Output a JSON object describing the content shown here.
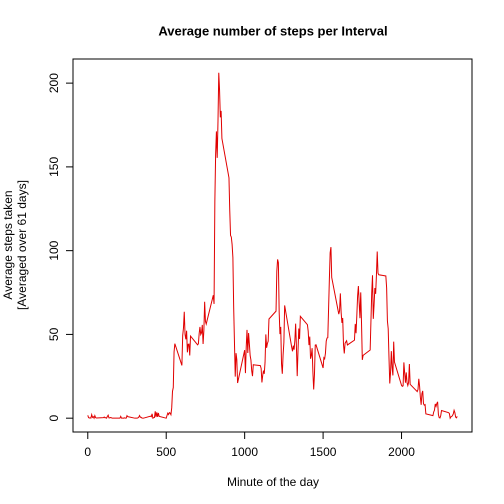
{
  "chart_data": {
    "type": "line",
    "title": "Average number of steps per Interval",
    "xlabel": "Minute of the day",
    "ylabel": [
      "Average steps taken",
      "[Averaged over 61 days]"
    ],
    "xlim": [
      -94.2,
      2449.2
    ],
    "ylim": [
      -8.25,
      214.4
    ],
    "xticks": [
      0,
      500,
      1000,
      1500,
      2000
    ],
    "yticks": [
      0,
      50,
      100,
      150,
      200
    ],
    "x": [
      0,
      5,
      10,
      15,
      20,
      25,
      30,
      35,
      40,
      45,
      50,
      55,
      100,
      105,
      110,
      115,
      120,
      125,
      130,
      135,
      140,
      145,
      150,
      155,
      200,
      205,
      210,
      215,
      220,
      225,
      230,
      235,
      240,
      245,
      250,
      255,
      300,
      305,
      310,
      315,
      320,
      325,
      330,
      335,
      340,
      345,
      350,
      355,
      400,
      405,
      410,
      415,
      420,
      425,
      430,
      435,
      440,
      445,
      450,
      455,
      500,
      505,
      510,
      515,
      520,
      525,
      530,
      535,
      540,
      545,
      550,
      555,
      600,
      605,
      610,
      615,
      620,
      625,
      630,
      635,
      640,
      645,
      650,
      655,
      700,
      705,
      710,
      715,
      720,
      725,
      730,
      735,
      740,
      745,
      750,
      755,
      800,
      805,
      810,
      815,
      820,
      825,
      830,
      835,
      840,
      845,
      850,
      855,
      900,
      905,
      910,
      915,
      920,
      925,
      930,
      935,
      940,
      945,
      950,
      955,
      1000,
      1005,
      1010,
      1015,
      1020,
      1025,
      1030,
      1035,
      1040,
      1045,
      1050,
      1055,
      1100,
      1105,
      1110,
      1115,
      1120,
      1125,
      1130,
      1135,
      1140,
      1145,
      1150,
      1155,
      1200,
      1205,
      1210,
      1215,
      1220,
      1225,
      1230,
      1235,
      1240,
      1245,
      1250,
      1255,
      1300,
      1305,
      1310,
      1315,
      1320,
      1325,
      1330,
      1335,
      1340,
      1345,
      1350,
      1355,
      1400,
      1405,
      1410,
      1415,
      1420,
      1425,
      1430,
      1435,
      1440,
      1445,
      1450,
      1455,
      1500,
      1505,
      1510,
      1515,
      1520,
      1525,
      1530,
      1535,
      1540,
      1545,
      1550,
      1555,
      1600,
      1605,
      1610,
      1615,
      1620,
      1625,
      1630,
      1635,
      1640,
      1645,
      1650,
      1655,
      1700,
      1705,
      1710,
      1715,
      1720,
      1725,
      1730,
      1735,
      1740,
      1745,
      1750,
      1755,
      1800,
      1805,
      1810,
      1815,
      1820,
      1825,
      1830,
      1835,
      1840,
      1845,
      1850,
      1855,
      1900,
      1905,
      1910,
      1915,
      1920,
      1925,
      1930,
      1935,
      1940,
      1945,
      1950,
      1955,
      2000,
      2005,
      2010,
      2015,
      2020,
      2025,
      2030,
      2035,
      2040,
      2045,
      2050,
      2055,
      2100,
      2105,
      2110,
      2115,
      2120,
      2125,
      2130,
      2135,
      2140,
      2145,
      2150,
      2155,
      2200,
      2205,
      2210,
      2215,
      2220,
      2225,
      2230,
      2235,
      2240,
      2245,
      2250,
      2255,
      2300,
      2305,
      2310,
      2315,
      2320,
      2325,
      2330,
      2335,
      2340,
      2345,
      2350,
      2355
    ],
    "series": [
      {
        "color": "#e00000",
        "values": [
          1.7,
          0.3,
          0.1,
          0.2,
          0.1,
          2.1,
          0.5,
          0.9,
          0,
          1.5,
          0.3,
          0.1,
          0.3,
          0.7,
          0.2,
          0.3,
          0,
          1.1,
          1.8,
          0.2,
          0.2,
          0.4,
          0.3,
          0,
          0,
          0,
          1.1,
          0,
          0,
          0.1,
          0,
          0.2,
          0,
          0,
          1.5,
          0.9,
          0,
          0,
          0,
          0,
          0.2,
          0.6,
          1.6,
          0.6,
          0.5,
          0.1,
          0,
          0,
          1.2,
          0.9,
          2.6,
          0,
          0.3,
          0.4,
          4.1,
          0.7,
          3.5,
          0.8,
          3.1,
          1.1,
          0,
          1.6,
          3,
          2.2,
          3.3,
          3,
          2.1,
          6.1,
          16,
          18.3,
          39.5,
          44.5,
          31.5,
          49.3,
          53.8,
          63.5,
          50,
          47.1,
          52.2,
          39.3,
          44.1,
          44.2,
          37.4,
          49,
          43.8,
          44.4,
          50.5,
          54.5,
          49.9,
          50.9,
          55.7,
          44.3,
          52.3,
          69.5,
          57.8,
          56.2,
          73.4,
          68.2,
          129.4,
          157.5,
          171.2,
          155.4,
          177.3,
          206.2,
          195.9,
          179.6,
          183.4,
          167,
          143.5,
          124,
          109.1,
          108.1,
          103.7,
          95.9,
          66.2,
          45.2,
          24.8,
          38.8,
          35,
          21,
          40.6,
          26.9,
          42.4,
          52.7,
          38.9,
          50.8,
          44.3,
          37.4,
          34.7,
          28.3,
          25.1,
          31.9,
          31.4,
          29.7,
          21.3,
          25.5,
          28.4,
          26.5,
          33.4,
          50,
          42,
          44.6,
          46,
          59.2,
          63.9,
          87.7,
          94.8,
          92.8,
          63.4,
          50.2,
          54.5,
          32.4,
          26.5,
          37.7,
          45.1,
          67.3,
          42.3,
          39.9,
          43.3,
          40.9,
          46.2,
          56.4,
          42.8,
          25.1,
          39.9,
          53.5,
          47.3,
          60.8,
          55.8,
          51.9,
          43.6,
          48.7,
          35.5,
          37.5,
          41.8,
          27.5,
          17.1,
          26.1,
          43.6,
          43.8,
          30,
          36.1,
          35.5,
          38.8,
          46,
          47.8,
          48.1,
          65.3,
          82.9,
          98.7,
          102.1,
          84,
          62.1,
          64.1,
          74.5,
          63.2,
          56.9,
          59.8,
          43.9,
          38.6,
          44.7,
          45.5,
          46.2,
          43.7,
          46.6,
          56.3,
          50.7,
          61.2,
          73,
          78.9,
          68.9,
          59.7,
          75.1,
          56.5,
          34.8,
          37.5,
          40.7,
          58,
          74.7,
          85.3,
          59.3,
          67.8,
          77.7,
          74.2,
          85.3,
          99.5,
          86.6,
          85.6,
          84.9,
          77.8,
          58,
          53.4,
          36.3,
          20.7,
          27.4,
          40,
          30.2,
          25.5,
          45.7,
          33.5,
          19.6,
          19,
          19.3,
          33.3,
          26.8,
          21.2,
          27.3,
          21.3,
          19.5,
          21.3,
          32.3,
          20.2,
          15.9,
          17.2,
          23.5,
          19.2,
          12.5,
          8,
          14.7,
          16.3,
          8.7,
          7.8,
          8.1,
          2.6,
          1.5,
          3.7,
          4.8,
          8.5,
          7.1,
          8.7,
          9.8,
          2.2,
          0.3,
          0.1,
          1.6,
          4.6,
          3.3,
          2.8,
          0,
          0.8,
          1,
          1.6,
          2.6,
          4.7,
          3.3,
          0.6,
          0.2,
          1.1
        ]
      }
    ]
  }
}
